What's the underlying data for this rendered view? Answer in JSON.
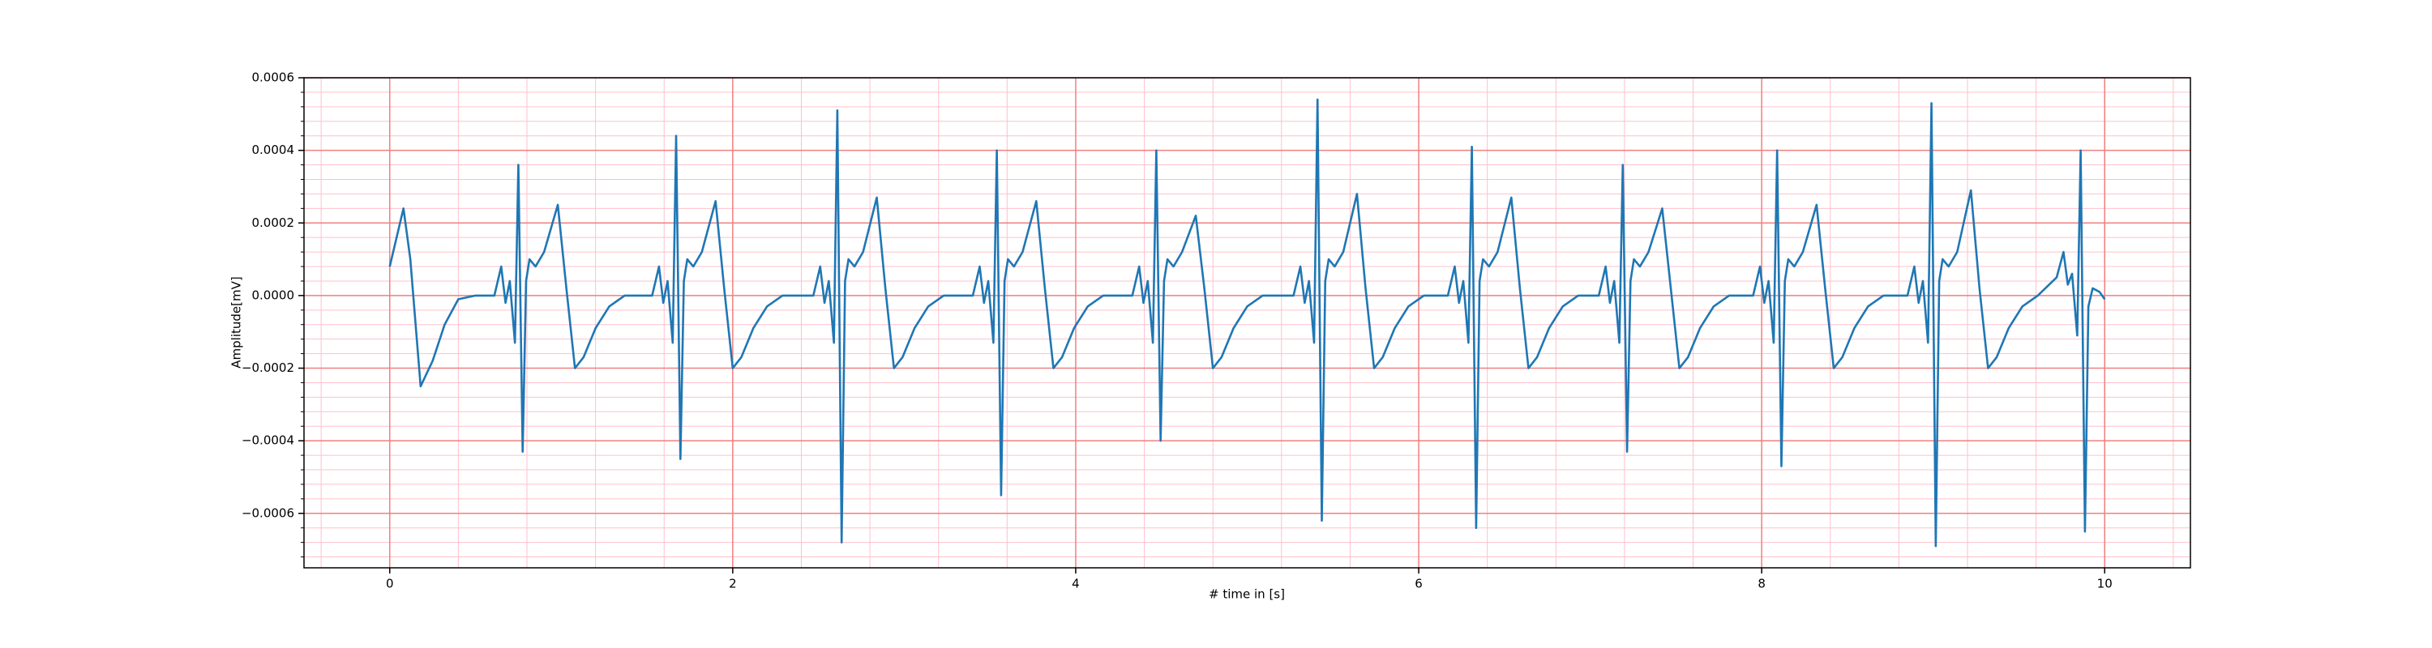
{
  "chart_data": {
    "type": "line",
    "x_label": "# time in [s]",
    "y_label": "Amplitude[mV]",
    "color": "#1f77b4",
    "xlim": [
      -0.5,
      10.5
    ],
    "ylim": [
      -0.00075,
      0.0006
    ],
    "xticks": [
      0,
      2,
      4,
      6,
      8,
      10
    ],
    "yticks": [
      {
        "value": -0.0006,
        "label": "−0.0006"
      },
      {
        "value": -0.0004,
        "label": "−0.0004"
      },
      {
        "value": -0.0002,
        "label": "−0.0002"
      },
      {
        "value": 0,
        "label": "0.0000"
      },
      0.0002,
      0.0004,
      0.0006
    ],
    "grid": true,
    "minor_grid": true,
    "x": [
      0,
      0.04,
      0.08,
      0.12,
      0.18,
      0.25,
      0.32,
      0.4,
      0.5,
      0.61,
      0.65,
      0.675,
      0.7,
      0.73,
      0.75,
      0.775,
      0.795,
      0.815,
      0.85,
      0.9,
      0.98,
      1.03,
      1.08,
      1.13,
      1.2,
      1.28,
      1.37,
      1.53,
      1.57,
      1.595,
      1.62,
      1.65,
      1.67,
      1.695,
      1.715,
      1.735,
      1.77,
      1.82,
      1.9,
      1.95,
      2.0,
      2.05,
      2.12,
      2.2,
      2.29,
      2.47,
      2.51,
      2.535,
      2.56,
      2.59,
      2.61,
      2.635,
      2.655,
      2.675,
      2.71,
      2.76,
      2.84,
      2.89,
      2.94,
      2.99,
      3.06,
      3.14,
      3.23,
      3.4,
      3.44,
      3.465,
      3.49,
      3.52,
      3.54,
      3.565,
      3.585,
      3.605,
      3.64,
      3.69,
      3.77,
      3.82,
      3.87,
      3.92,
      3.99,
      4.07,
      4.16,
      4.33,
      4.37,
      4.395,
      4.42,
      4.45,
      4.47,
      4.495,
      4.515,
      4.535,
      4.57,
      4.62,
      4.7,
      4.75,
      4.8,
      4.85,
      4.92,
      5.0,
      5.09,
      5.27,
      5.31,
      5.335,
      5.36,
      5.39,
      5.41,
      5.435,
      5.455,
      5.475,
      5.51,
      5.56,
      5.64,
      5.69,
      5.74,
      5.79,
      5.86,
      5.94,
      6.03,
      6.17,
      6.21,
      6.235,
      6.26,
      6.29,
      6.31,
      6.335,
      6.355,
      6.375,
      6.41,
      6.46,
      6.54,
      6.59,
      6.64,
      6.69,
      6.76,
      6.84,
      6.93,
      7.05,
      7.09,
      7.115,
      7.14,
      7.17,
      7.19,
      7.215,
      7.235,
      7.255,
      7.29,
      7.34,
      7.42,
      7.47,
      7.52,
      7.57,
      7.64,
      7.72,
      7.81,
      7.95,
      7.99,
      8.015,
      8.04,
      8.07,
      8.09,
      8.115,
      8.135,
      8.155,
      8.19,
      8.24,
      8.32,
      8.37,
      8.42,
      8.47,
      8.54,
      8.62,
      8.71,
      8.85,
      8.89,
      8.915,
      8.94,
      8.97,
      8.99,
      9.015,
      9.035,
      9.055,
      9.09,
      9.14,
      9.22,
      9.27,
      9.32,
      9.37,
      9.44,
      9.52,
      9.61,
      9.72,
      9.76,
      9.785,
      9.81,
      9.84,
      9.86,
      9.885,
      9.905,
      9.93,
      9.97,
      10.0
    ],
    "values": [
      8e-05,
      0.00016,
      0.00024,
      0.0001,
      -0.00025,
      -0.00018,
      -8e-05,
      -1e-05,
      0,
      0,
      8e-05,
      -2e-05,
      4e-05,
      -0.00013,
      0.00036,
      -0.00043,
      4e-05,
      0.0001,
      8e-05,
      0.00012,
      0.00025,
      2e-05,
      -0.0002,
      -0.00017,
      -9e-05,
      -3e-05,
      0,
      0,
      8e-05,
      -2e-05,
      4e-05,
      -0.00013,
      0.00044,
      -0.00045,
      4e-05,
      0.0001,
      8e-05,
      0.00012,
      0.00026,
      2e-05,
      -0.0002,
      -0.00017,
      -9e-05,
      -3e-05,
      0,
      0,
      8e-05,
      -2e-05,
      4e-05,
      -0.00013,
      0.00051,
      -0.00068,
      4e-05,
      0.0001,
      8e-05,
      0.00012,
      0.00027,
      2e-05,
      -0.0002,
      -0.00017,
      -9e-05,
      -3e-05,
      0,
      0,
      8e-05,
      -2e-05,
      4e-05,
      -0.00013,
      0.0004,
      -0.00055,
      4e-05,
      0.0001,
      8e-05,
      0.00012,
      0.00026,
      2e-05,
      -0.0002,
      -0.00017,
      -9e-05,
      -3e-05,
      0,
      0,
      8e-05,
      -2e-05,
      4e-05,
      -0.00013,
      0.0004,
      -0.0004,
      4e-05,
      0.0001,
      8e-05,
      0.00012,
      0.00022,
      2e-05,
      -0.0002,
      -0.00017,
      -9e-05,
      -3e-05,
      0,
      0,
      8e-05,
      -2e-05,
      4e-05,
      -0.00013,
      0.00054,
      -0.00062,
      4e-05,
      0.0001,
      8e-05,
      0.00012,
      0.00028,
      2e-05,
      -0.0002,
      -0.00017,
      -9e-05,
      -3e-05,
      0,
      0,
      8e-05,
      -2e-05,
      4e-05,
      -0.00013,
      0.00041,
      -0.00064,
      4e-05,
      0.0001,
      8e-05,
      0.00012,
      0.00027,
      2e-05,
      -0.0002,
      -0.00017,
      -9e-05,
      -3e-05,
      0,
      0,
      8e-05,
      -2e-05,
      4e-05,
      -0.00013,
      0.00036,
      -0.00043,
      4e-05,
      0.0001,
      8e-05,
      0.00012,
      0.00024,
      2e-05,
      -0.0002,
      -0.00017,
      -9e-05,
      -3e-05,
      0,
      0,
      8e-05,
      -2e-05,
      4e-05,
      -0.00013,
      0.0004,
      -0.00047,
      4e-05,
      0.0001,
      8e-05,
      0.00012,
      0.00025,
      2e-05,
      -0.0002,
      -0.00017,
      -9e-05,
      -3e-05,
      0,
      0,
      8e-05,
      -2e-05,
      4e-05,
      -0.00013,
      0.00053,
      -0.00069,
      4e-05,
      0.0001,
      8e-05,
      0.00012,
      0.00029,
      2e-05,
      -0.0002,
      -0.00017,
      -9e-05,
      -3e-05,
      0,
      5e-05,
      0.00012,
      3e-05,
      6e-05,
      -0.00011,
      0.0004,
      -0.00065,
      -3e-05,
      2e-05,
      1e-05,
      -1e-05
    ]
  }
}
